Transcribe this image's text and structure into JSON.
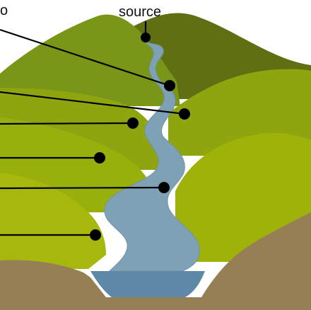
{
  "labels": {
    "top_left_fragment": "o",
    "source": "source"
  },
  "colors": {
    "back_hill": "#5f6f12",
    "left_hill": "#7a9618",
    "mid_hill": "#8ea50f",
    "front_left_hill": "#99b00c",
    "right_front_hill": "#9eb20a",
    "bottom_left_hill": "#a6b80c",
    "river": "#7fa1b6",
    "river_edge": "#5a7f98",
    "lake": "#5e88a8",
    "ground": "#967f55",
    "callout": "#000000"
  },
  "icons": {
    "callout_marker": "filled-circle"
  }
}
